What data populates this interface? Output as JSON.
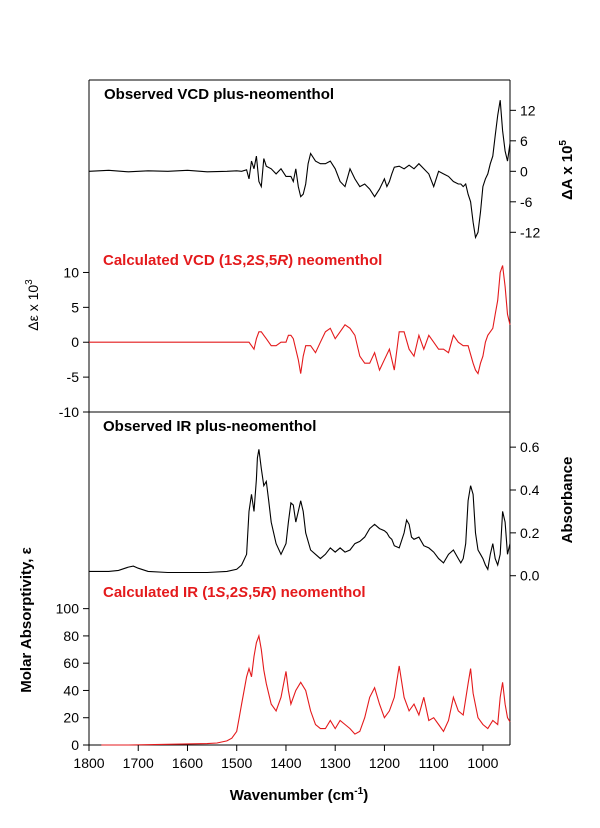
{
  "chart_data": [
    {
      "type": "line",
      "title": "Observed VCD plus-neomenthol",
      "title_color": "#000000",
      "line_color": "#000000",
      "axis_side": "right",
      "ylabel_base": "ΔA x 10",
      "ylabel_exp": "5",
      "yticks": [
        12,
        6,
        0,
        -6,
        -12
      ],
      "ylim": [
        -14.5,
        16
      ],
      "x": [
        1800,
        1760,
        1720,
        1680,
        1640,
        1600,
        1560,
        1520,
        1500,
        1490,
        1480,
        1475,
        1470,
        1465,
        1460,
        1455,
        1450,
        1445,
        1440,
        1430,
        1420,
        1410,
        1400,
        1390,
        1385,
        1380,
        1375,
        1370,
        1365,
        1360,
        1355,
        1350,
        1340,
        1330,
        1320,
        1310,
        1300,
        1290,
        1280,
        1270,
        1260,
        1250,
        1240,
        1230,
        1220,
        1210,
        1200,
        1195,
        1190,
        1185,
        1180,
        1170,
        1160,
        1150,
        1140,
        1130,
        1120,
        1110,
        1100,
        1090,
        1080,
        1070,
        1060,
        1050,
        1045,
        1040,
        1035,
        1030,
        1025,
        1020,
        1015,
        1010,
        1005,
        1000,
        995,
        990,
        985,
        980,
        975,
        970,
        965,
        960,
        955,
        950,
        945
      ],
      "y": [
        0,
        0.2,
        -0.1,
        0.1,
        0,
        0.2,
        -0.1,
        0,
        0.1,
        0,
        0.3,
        -1.5,
        2,
        0.5,
        3,
        -2,
        -3,
        2.5,
        1,
        0.5,
        -0.5,
        0.5,
        -1,
        -1,
        -2,
        0.5,
        -3,
        -5,
        -4.5,
        -2.5,
        1.5,
        3.5,
        2,
        1.5,
        1.5,
        2,
        0.5,
        -2,
        -3,
        0.5,
        -1.5,
        -3,
        -2.5,
        -3.5,
        -5,
        -3.5,
        -1.5,
        -3,
        -2,
        -0.5,
        0.8,
        1,
        0.5,
        1.2,
        0.5,
        1.5,
        0.5,
        -0.5,
        -3,
        0,
        -0.5,
        -1,
        -2,
        -2.5,
        -2.5,
        -3,
        -2.5,
        -4.5,
        -6,
        -10,
        -13,
        -12,
        -8,
        -3,
        -1.5,
        -0.5,
        1.5,
        3,
        7,
        11,
        14,
        8,
        4,
        2,
        5.5
      ]
    },
    {
      "type": "line",
      "title_parts": [
        "Calculated VCD (1",
        "S",
        ",2",
        "S",
        ",5",
        "R",
        ") neomenthol"
      ],
      "title_color": "#e41a1c",
      "line_color": "#e41a1c",
      "axis_side": "left",
      "ylabel_base": "Δε x 10",
      "ylabel_exp": "3",
      "yticks": [
        10,
        5,
        0,
        -5,
        -10
      ],
      "ylim": [
        -10,
        11.5
      ],
      "x": [
        1800,
        1500,
        1475,
        1470,
        1465,
        1460,
        1455,
        1450,
        1445,
        1440,
        1430,
        1420,
        1410,
        1400,
        1395,
        1390,
        1385,
        1380,
        1375,
        1370,
        1365,
        1360,
        1350,
        1340,
        1330,
        1320,
        1310,
        1300,
        1290,
        1280,
        1270,
        1260,
        1250,
        1240,
        1230,
        1220,
        1210,
        1200,
        1190,
        1180,
        1170,
        1160,
        1150,
        1140,
        1130,
        1120,
        1110,
        1100,
        1090,
        1080,
        1070,
        1060,
        1050,
        1040,
        1030,
        1020,
        1015,
        1010,
        1005,
        1000,
        995,
        990,
        985,
        980,
        975,
        970,
        965,
        960,
        955,
        950,
        945
      ],
      "y": [
        0,
        0,
        0,
        -0.5,
        -1,
        0.5,
        1.5,
        1.5,
        1,
        0.5,
        -0.5,
        -0.5,
        0,
        0,
        1,
        1,
        0.5,
        -1,
        -2.5,
        -4.5,
        -2,
        -0.5,
        -0.5,
        -1.5,
        0,
        1.5,
        2,
        0.5,
        1.5,
        2.5,
        2,
        1,
        -2,
        -3,
        -3,
        -1.5,
        -4,
        -2.5,
        -1,
        -4,
        1.5,
        1.5,
        -1,
        -2,
        1,
        -1,
        1,
        0,
        -1,
        -1,
        -1.5,
        1,
        0,
        -0.5,
        -0.5,
        -3,
        -4,
        -4.5,
        -3,
        -2,
        0,
        1,
        1.5,
        2,
        4,
        6,
        10,
        11,
        8,
        4,
        2.5
      ]
    },
    {
      "type": "line",
      "title": "Observed IR plus-neomenthol",
      "title_color": "#000000",
      "line_color": "#000000",
      "axis_side": "right",
      "ylabel_base": "Absorbance",
      "yticks": [
        0.6,
        0.4,
        0.2,
        0.0
      ],
      "yticklabels": [
        "0.6",
        "0.4",
        "0.2",
        "0.0"
      ],
      "ylim": [
        -0.02,
        0.68
      ],
      "x": [
        1800,
        1760,
        1740,
        1720,
        1710,
        1700,
        1680,
        1640,
        1600,
        1560,
        1520,
        1500,
        1490,
        1480,
        1475,
        1470,
        1465,
        1460,
        1458,
        1455,
        1450,
        1445,
        1440,
        1435,
        1430,
        1420,
        1410,
        1400,
        1395,
        1390,
        1385,
        1380,
        1375,
        1370,
        1365,
        1360,
        1350,
        1340,
        1330,
        1320,
        1310,
        1300,
        1290,
        1280,
        1270,
        1260,
        1250,
        1240,
        1230,
        1220,
        1210,
        1200,
        1195,
        1190,
        1185,
        1180,
        1170,
        1160,
        1155,
        1150,
        1145,
        1140,
        1130,
        1120,
        1110,
        1100,
        1090,
        1080,
        1070,
        1060,
        1050,
        1045,
        1040,
        1035,
        1030,
        1025,
        1020,
        1015,
        1010,
        1005,
        1000,
        995,
        990,
        985,
        980,
        975,
        970,
        965,
        960,
        955,
        950,
        945
      ],
      "y": [
        0.02,
        0.02,
        0.025,
        0.04,
        0.045,
        0.035,
        0.02,
        0.015,
        0.015,
        0.015,
        0.02,
        0.03,
        0.05,
        0.1,
        0.3,
        0.38,
        0.3,
        0.45,
        0.55,
        0.59,
        0.5,
        0.42,
        0.44,
        0.35,
        0.25,
        0.15,
        0.1,
        0.15,
        0.25,
        0.34,
        0.33,
        0.25,
        0.3,
        0.35,
        0.3,
        0.2,
        0.12,
        0.1,
        0.08,
        0.1,
        0.13,
        0.11,
        0.13,
        0.11,
        0.12,
        0.15,
        0.16,
        0.18,
        0.22,
        0.24,
        0.22,
        0.21,
        0.2,
        0.18,
        0.17,
        0.14,
        0.13,
        0.2,
        0.26,
        0.24,
        0.18,
        0.17,
        0.18,
        0.14,
        0.13,
        0.11,
        0.08,
        0.06,
        0.1,
        0.12,
        0.08,
        0.06,
        0.08,
        0.15,
        0.35,
        0.42,
        0.38,
        0.2,
        0.12,
        0.1,
        0.08,
        0.05,
        0.03,
        0.1,
        0.15,
        0.08,
        0.05,
        0.1,
        0.3,
        0.25,
        0.1,
        0.15
      ]
    },
    {
      "type": "line",
      "title_parts": [
        "Calculated IR (1",
        "S",
        ",2",
        "S",
        ",5",
        "R",
        ") neomenthol"
      ],
      "title_color": "#e41a1c",
      "line_color": "#e41a1c",
      "axis_side": "left",
      "ylabel_base": "Molar Absorptivity, ε",
      "yticks": [
        100,
        80,
        60,
        40,
        20,
        0
      ],
      "ylim": [
        0,
        110
      ],
      "x": [
        1775,
        1760,
        1720,
        1680,
        1640,
        1600,
        1560,
        1540,
        1520,
        1510,
        1500,
        1495,
        1490,
        1485,
        1480,
        1475,
        1470,
        1465,
        1460,
        1455,
        1450,
        1445,
        1440,
        1430,
        1420,
        1410,
        1400,
        1395,
        1390,
        1380,
        1370,
        1360,
        1350,
        1340,
        1330,
        1320,
        1310,
        1300,
        1290,
        1280,
        1270,
        1260,
        1250,
        1240,
        1230,
        1220,
        1210,
        1200,
        1190,
        1180,
        1170,
        1160,
        1150,
        1140,
        1130,
        1120,
        1110,
        1100,
        1090,
        1080,
        1070,
        1060,
        1050,
        1040,
        1030,
        1025,
        1020,
        1010,
        1000,
        990,
        980,
        970,
        965,
        960,
        955,
        950,
        945
      ],
      "y": [
        0,
        0,
        0,
        0.2,
        0.5,
        0.8,
        1,
        1.5,
        3,
        5,
        10,
        20,
        30,
        40,
        50,
        56,
        50,
        65,
        75,
        80,
        70,
        55,
        45,
        30,
        25,
        35,
        54,
        40,
        30,
        40,
        46,
        40,
        25,
        15,
        12,
        12,
        18,
        12,
        18,
        15,
        12,
        8,
        10,
        20,
        35,
        42,
        30,
        20,
        25,
        35,
        58,
        35,
        25,
        30,
        22,
        35,
        18,
        20,
        15,
        10,
        18,
        35,
        25,
        22,
        45,
        56,
        38,
        20,
        15,
        12,
        18,
        15,
        35,
        46,
        30,
        20,
        17
      ]
    }
  ],
  "x_axis": {
    "ticks": [
      1800,
      1700,
      1600,
      1500,
      1400,
      1300,
      1200,
      1100,
      1000
    ],
    "label_base": "Wavenumber (cm",
    "label_exp": "-1",
    "label_end": ")",
    "xlim": [
      1800,
      945
    ]
  }
}
